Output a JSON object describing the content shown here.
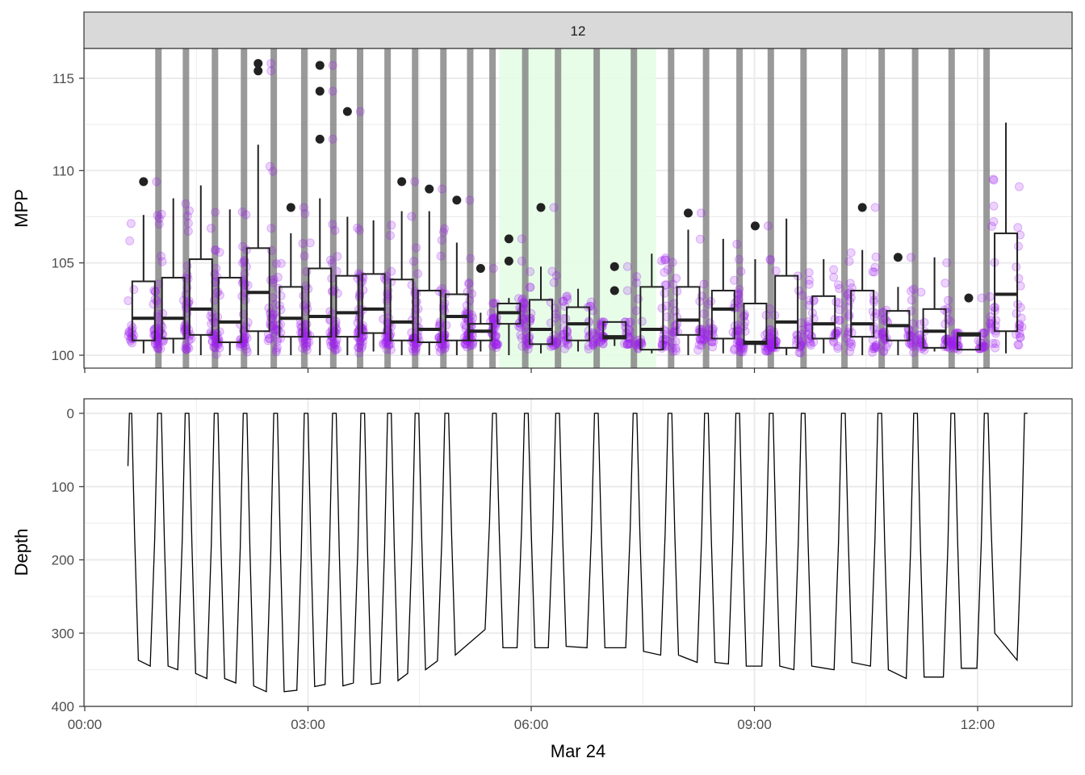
{
  "chart_data": [
    {
      "type": "box",
      "facet_label": "12",
      "ylabel": "MPP",
      "xlabel": "Mar 24",
      "ylim": [
        99.4,
        116.5
      ],
      "xlim_hours": [
        0,
        13.0
      ],
      "yticks": [
        "100",
        "105",
        "110",
        "115"
      ],
      "yticks_values": [
        100,
        105,
        110,
        115
      ],
      "xticks": [
        "00:00",
        "03:00",
        "06:00",
        "09:00",
        "12:00"
      ],
      "xticks_hours": [
        0,
        3,
        6,
        9,
        12
      ],
      "colors": {
        "points": "#a020f0",
        "box": "#222222",
        "bars": "#7f7f7f",
        "highlight": "#e6fde6"
      },
      "highlight_hours": [
        5.57,
        7.68
      ],
      "surface_bars_hours": [
        0.99,
        1.36,
        1.75,
        2.14,
        2.54,
        2.95,
        3.34,
        3.7,
        4.07,
        4.44,
        4.82,
        5.18,
        5.48,
        5.92,
        6.36,
        6.88,
        7.38,
        7.88,
        8.35,
        8.8,
        9.22,
        9.66,
        10.21,
        10.71,
        11.16,
        11.65,
        12.12
      ],
      "boxes": [
        {
          "t": 0.79,
          "lo": 100.1,
          "q1": 100.8,
          "med": 102.0,
          "q3": 104.0,
          "hi": 107.6,
          "out": [
            109.4
          ]
        },
        {
          "t": 1.19,
          "lo": 100.1,
          "q1": 100.9,
          "med": 102.0,
          "q3": 104.2,
          "hi": 108.5,
          "out": []
        },
        {
          "t": 1.56,
          "lo": 100.0,
          "q1": 101.1,
          "med": 102.5,
          "q3": 105.2,
          "hi": 109.2,
          "out": []
        },
        {
          "t": 1.95,
          "lo": 100.0,
          "q1": 100.7,
          "med": 101.8,
          "q3": 104.2,
          "hi": 107.9,
          "out": []
        },
        {
          "t": 2.33,
          "lo": 100.0,
          "q1": 101.3,
          "med": 103.4,
          "q3": 105.8,
          "hi": 111.4,
          "out": [
            115.8,
            115.4
          ]
        },
        {
          "t": 2.77,
          "lo": 100.0,
          "q1": 101.0,
          "med": 102.0,
          "q3": 103.7,
          "hi": 106.6,
          "out": [
            108.0
          ]
        },
        {
          "t": 3.16,
          "lo": 100.0,
          "q1": 101.0,
          "med": 102.1,
          "q3": 104.7,
          "hi": 108.5,
          "out": [
            115.7,
            114.3,
            111.7
          ]
        },
        {
          "t": 3.53,
          "lo": 100.0,
          "q1": 101.0,
          "med": 102.3,
          "q3": 104.3,
          "hi": 107.5,
          "out": [
            113.2
          ]
        },
        {
          "t": 3.88,
          "lo": 100.2,
          "q1": 101.2,
          "med": 102.5,
          "q3": 104.4,
          "hi": 107.3,
          "out": []
        },
        {
          "t": 4.26,
          "lo": 100.0,
          "q1": 100.8,
          "med": 101.8,
          "q3": 104.1,
          "hi": 107.8,
          "out": [
            109.4
          ]
        },
        {
          "t": 4.63,
          "lo": 100.0,
          "q1": 100.7,
          "med": 101.4,
          "q3": 103.5,
          "hi": 107.8,
          "out": [
            109.0
          ]
        },
        {
          "t": 5.0,
          "lo": 100.0,
          "q1": 100.8,
          "med": 102.1,
          "q3": 103.3,
          "hi": 106.1,
          "out": [
            108.4
          ]
        },
        {
          "t": 5.32,
          "lo": 100.2,
          "q1": 100.8,
          "med": 101.3,
          "q3": 101.7,
          "hi": 102.3,
          "out": [
            104.7
          ]
        },
        {
          "t": 5.7,
          "lo": 100.0,
          "q1": 101.7,
          "med": 102.3,
          "q3": 102.8,
          "hi": 103.1,
          "out": [
            106.3,
            105.1
          ]
        },
        {
          "t": 6.13,
          "lo": 100.1,
          "q1": 100.6,
          "med": 101.4,
          "q3": 103.0,
          "hi": 104.8,
          "out": [
            108.0
          ]
        },
        {
          "t": 6.63,
          "lo": 100.2,
          "q1": 100.8,
          "med": 101.7,
          "q3": 102.6,
          "hi": 103.6,
          "out": []
        },
        {
          "t": 7.12,
          "lo": 100.5,
          "q1": 100.9,
          "med": 101.0,
          "q3": 101.8,
          "hi": 101.8,
          "out": [
            104.8,
            103.5
          ]
        },
        {
          "t": 7.62,
          "lo": 100.1,
          "q1": 100.3,
          "med": 101.4,
          "q3": 103.7,
          "hi": 105.5,
          "out": []
        },
        {
          "t": 8.11,
          "lo": 100.0,
          "q1": 101.1,
          "med": 101.9,
          "q3": 103.7,
          "hi": 106.8,
          "out": [
            107.7
          ]
        },
        {
          "t": 8.58,
          "lo": 100.1,
          "q1": 100.9,
          "med": 102.5,
          "q3": 103.5,
          "hi": 106.3,
          "out": []
        },
        {
          "t": 9.01,
          "lo": 100.1,
          "q1": 100.6,
          "med": 100.7,
          "q3": 102.8,
          "hi": 105.2,
          "out": [
            107.0
          ]
        },
        {
          "t": 9.43,
          "lo": 100.0,
          "q1": 100.4,
          "med": 101.8,
          "q3": 104.3,
          "hi": 107.4,
          "out": []
        },
        {
          "t": 9.93,
          "lo": 100.1,
          "q1": 100.9,
          "med": 101.7,
          "q3": 103.2,
          "hi": 105.2,
          "out": []
        },
        {
          "t": 10.45,
          "lo": 100.0,
          "q1": 101.0,
          "med": 101.7,
          "q3": 103.5,
          "hi": 105.7,
          "out": [
            108.0
          ]
        },
        {
          "t": 10.93,
          "lo": 100.0,
          "q1": 100.8,
          "med": 101.6,
          "q3": 102.4,
          "hi": 103.7,
          "out": [
            105.3
          ]
        },
        {
          "t": 11.42,
          "lo": 100.2,
          "q1": 100.4,
          "med": 101.3,
          "q3": 102.5,
          "hi": 105.3,
          "out": []
        },
        {
          "t": 11.88,
          "lo": 100.3,
          "q1": 100.3,
          "med": 101.1,
          "q3": 101.2,
          "hi": 101.2,
          "out": [
            103.1
          ]
        },
        {
          "t": 12.38,
          "lo": 100.1,
          "q1": 101.3,
          "med": 103.3,
          "q3": 106.6,
          "hi": 112.6,
          "out": []
        }
      ]
    },
    {
      "type": "line",
      "ylabel": "Depth",
      "xlabel": "Mar 24",
      "ylim_reversed": [
        0,
        400
      ],
      "yticks": [
        "0",
        "100",
        "200",
        "300",
        "400"
      ],
      "yticks_values": [
        0,
        100,
        200,
        300,
        400
      ],
      "xticks": [
        "00:00",
        "03:00",
        "06:00",
        "09:00",
        "12:00"
      ],
      "xticks_hours": [
        0,
        3,
        6,
        9,
        12
      ],
      "start_depth": 72,
      "surface_hours": [
        0.6,
        1.0,
        1.37,
        1.76,
        2.15,
        2.56,
        2.97,
        3.35,
        3.73,
        4.09,
        4.46,
        4.86,
        5.5,
        5.93,
        6.35,
        6.87,
        7.39,
        7.86,
        8.35,
        8.77,
        9.22,
        9.65,
        10.19,
        10.68,
        11.16,
        11.66,
        12.11,
        12.65
      ],
      "dive_bottom_depths": [
        [
          337,
          345
        ],
        [
          345,
          350
        ],
        [
          355,
          362
        ],
        [
          362,
          368
        ],
        [
          372,
          380
        ],
        [
          380,
          378
        ],
        [
          373,
          370
        ],
        [
          372,
          368
        ],
        [
          370,
          368
        ],
        [
          365,
          355
        ],
        [
          350,
          338
        ],
        [
          330,
          295
        ],
        [
          320,
          320
        ],
        [
          320,
          320
        ],
        [
          318,
          320
        ],
        [
          320,
          320
        ],
        [
          325,
          330
        ],
        [
          330,
          340
        ],
        [
          340,
          342
        ],
        [
          345,
          345
        ],
        [
          345,
          350
        ],
        [
          345,
          350
        ],
        [
          340,
          345
        ],
        [
          350,
          362
        ],
        [
          360,
          360
        ],
        [
          348,
          348
        ],
        [
          300,
          337
        ]
      ]
    }
  ]
}
